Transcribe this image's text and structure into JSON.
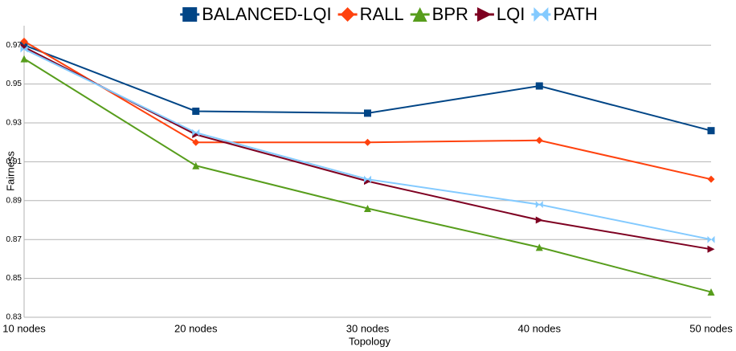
{
  "chart_data": {
    "type": "line",
    "xlabel": "Topology",
    "ylabel": "Fairness",
    "categories": [
      "10 nodes",
      "20 nodes",
      "30 nodes",
      "40 nodes",
      "50 nodes"
    ],
    "series": [
      {
        "name": "BALANCED-LQI",
        "color": "#004586",
        "marker": "square",
        "values": [
          0.97,
          0.936,
          0.935,
          0.949,
          0.926
        ]
      },
      {
        "name": "RALL",
        "color": "#ff420e",
        "marker": "diamond",
        "values": [
          0.972,
          0.92,
          0.92,
          0.921,
          0.901
        ]
      },
      {
        "name": "BPR",
        "color": "#579d1c",
        "marker": "triangle",
        "values": [
          0.963,
          0.908,
          0.886,
          0.866,
          0.843
        ]
      },
      {
        "name": "LQI",
        "color": "#7e0021",
        "marker": "triangle-right",
        "values": [
          0.969,
          0.924,
          0.9,
          0.88,
          0.865
        ]
      },
      {
        "name": "PATH",
        "color": "#83caff",
        "marker": "bowtie",
        "values": [
          0.968,
          0.925,
          0.901,
          0.888,
          0.87
        ]
      }
    ],
    "ylim": [
      0.83,
      0.98
    ],
    "yticks": [
      0.83,
      0.85,
      0.87,
      0.89,
      0.91,
      0.93,
      0.95,
      0.97
    ],
    "grid": true,
    "legend": "top"
  }
}
